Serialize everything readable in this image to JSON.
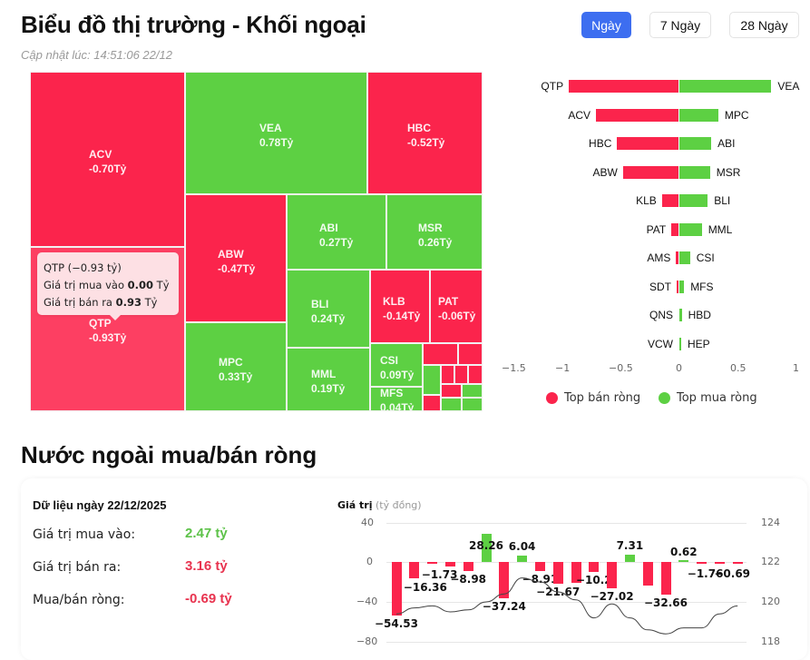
{
  "header": {
    "title": "Biểu đồ thị trường - Khối ngoại",
    "updated": "Cập nhật lúc: 14:51:06 22/12",
    "periods": [
      {
        "label": "Ngày",
        "active": true
      },
      {
        "label": "7 Ngày",
        "active": false
      },
      {
        "label": "28 Ngày",
        "active": false
      }
    ]
  },
  "colors": {
    "sell": "#fb244c",
    "buy": "#5dd043",
    "accent": "#3d6ef0"
  },
  "treemap": {
    "cells": [
      {
        "ticker": "ACV",
        "value": "-0.70Tỷ",
        "type": "red"
      },
      {
        "ticker": "QTP",
        "value": "-0.93Tỷ",
        "type": "red"
      },
      {
        "ticker": "VEA",
        "value": "0.78Tỷ",
        "type": "green"
      },
      {
        "ticker": "HBC",
        "value": "-0.52Tỷ",
        "type": "red"
      },
      {
        "ticker": "ABW",
        "value": "-0.47Tỷ",
        "type": "red"
      },
      {
        "ticker": "MPC",
        "value": "0.33Tỷ",
        "type": "green"
      },
      {
        "ticker": "ABI",
        "value": "0.27Tỷ",
        "type": "green"
      },
      {
        "ticker": "MSR",
        "value": "0.26Tỷ",
        "type": "green"
      },
      {
        "ticker": "BLI",
        "value": "0.24Tỷ",
        "type": "green"
      },
      {
        "ticker": "MML",
        "value": "0.19Tỷ",
        "type": "green"
      },
      {
        "ticker": "KLB",
        "value": "-0.14Tỷ",
        "type": "red"
      },
      {
        "ticker": "PAT",
        "value": "-0.06Tỷ",
        "type": "red"
      },
      {
        "ticker": "CSI",
        "value": "0.09Tỷ",
        "type": "green"
      },
      {
        "ticker": "MFS",
        "value": "0.04Tỷ",
        "type": "green"
      }
    ],
    "tooltip": {
      "title": "QTP (−0.93 tỷ)",
      "buy_label": "Giá trị mua vào",
      "buy_value": "0.00",
      "sell_label": "Giá trị bán ra",
      "sell_value": "0.93",
      "unit": "Tỷ"
    }
  },
  "chart_data": [
    {
      "type": "bar",
      "title": "Top bán ròng / Top mua ròng",
      "orientation": "horizontal",
      "sell_tickers": [
        "QTP",
        "ACV",
        "HBC",
        "ABW",
        "KLB",
        "PAT",
        "AMS",
        "SDT",
        "QNS",
        "VCW"
      ],
      "sell_values": [
        -0.93,
        -0.7,
        -0.52,
        -0.47,
        -0.14,
        -0.06,
        -0.02,
        -0.01,
        0,
        0
      ],
      "buy_tickers": [
        "VEA",
        "MPC",
        "ABI",
        "MSR",
        "BLI",
        "MML",
        "CSI",
        "MFS",
        "HBD",
        "HEP"
      ],
      "buy_values": [
        0.78,
        0.33,
        0.27,
        0.26,
        0.24,
        0.19,
        0.09,
        0.04,
        0.02,
        0.01
      ],
      "xticks": [
        "−1.5",
        "−1",
        "−0.5",
        "0",
        "0.5",
        "1"
      ],
      "xlim": [
        -1.5,
        1
      ],
      "legend": [
        {
          "label": "Top bán ròng",
          "color": "#fb244c"
        },
        {
          "label": "Top mua ròng",
          "color": "#5dd043"
        }
      ],
      "legend_position": "bottom"
    },
    {
      "type": "bar",
      "title": "Giá trị",
      "ylabel": "Giá trị",
      "ylabel_unit": "(tỷ đồng)",
      "values": [
        -54.53,
        -16.36,
        -1.73,
        -4.5,
        -8.98,
        28.26,
        -37.24,
        6.04,
        -8.91,
        -21.67,
        -21.0,
        -10.2,
        -27.02,
        7.31,
        -24.0,
        -32.66,
        0.62,
        -1.76,
        -1.7,
        -0.69
      ],
      "labels": [
        "-54.53",
        "-16.36",
        "-1.73",
        "",
        "-8.98",
        "28.26",
        "-37.24",
        "6.04",
        "-8.91",
        "-21.67",
        "",
        "-10.2",
        "-27.02",
        "7.31",
        "",
        "-32.66",
        "0.62",
        "-1.76",
        "",
        "-0.69"
      ],
      "yticks_left": [
        "40",
        "0",
        "−40",
        "−80"
      ],
      "ylim": [
        -80,
        40
      ],
      "yticks_right": [
        "124",
        "122",
        "120",
        "118"
      ],
      "ylim_right": [
        118,
        124
      ],
      "line_series": [
        119.4,
        119.7,
        119.8,
        119.5,
        119.6,
        120.0,
        120.4,
        121.2,
        121.0,
        120.5,
        120.1,
        119.2,
        119.9,
        119.2,
        118.6,
        118.4,
        118.7,
        118.7,
        119.4,
        119.8
      ],
      "grid": true
    }
  ],
  "net_flow": {
    "section_title": "Nước ngoài mua/bán ròng",
    "date_label": "Dữ liệu ngày 22/12/2025",
    "rows": [
      {
        "label": "Giá trị mua vào:",
        "value": "2.47 tỷ",
        "color": "#5dc249"
      },
      {
        "label": "Giá trị bán ra:",
        "value": "3.16 tỷ",
        "color": "#e8334f"
      },
      {
        "label": "Mua/bán ròng:",
        "value": "-0.69 tỷ",
        "color": "#e8334f"
      }
    ]
  }
}
